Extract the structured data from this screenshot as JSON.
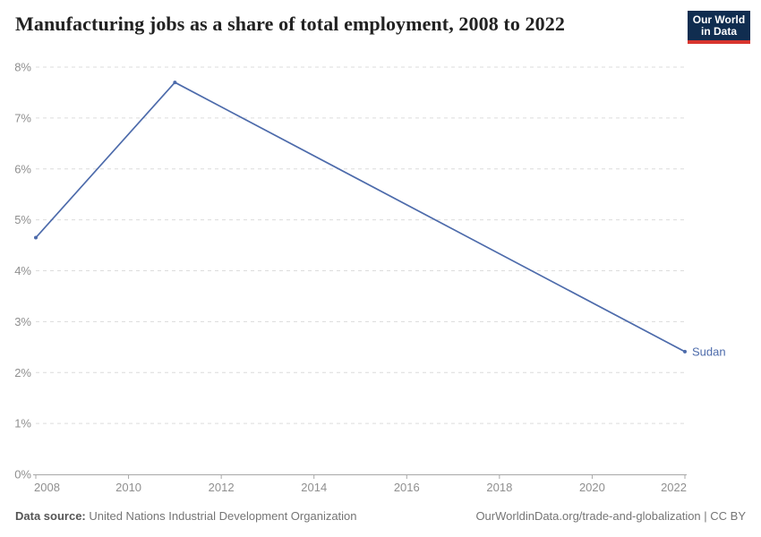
{
  "header": {
    "title": "Manufacturing jobs as a share of total employment, 2008 to 2022"
  },
  "logo": {
    "line1": "Our World",
    "line2": "in Data",
    "bg_color": "#102d50",
    "bar_color": "#d8352e"
  },
  "chart_data": {
    "type": "line",
    "title": "Manufacturing jobs as a share of total employment, 2008 to 2022",
    "xlabel": "",
    "ylabel": "",
    "xlim": [
      2008,
      2022
    ],
    "ylim": [
      0,
      8
    ],
    "grid": "horizontal-dashed",
    "legend_position": "end-of-line-label",
    "xticks": [
      2008,
      2010,
      2012,
      2014,
      2016,
      2018,
      2020,
      2022
    ],
    "yticks": [
      {
        "v": 0,
        "label": "0%"
      },
      {
        "v": 1,
        "label": "1%"
      },
      {
        "v": 2,
        "label": "2%"
      },
      {
        "v": 3,
        "label": "3%"
      },
      {
        "v": 4,
        "label": "4%"
      },
      {
        "v": 5,
        "label": "5%"
      },
      {
        "v": 6,
        "label": "6%"
      },
      {
        "v": 7,
        "label": "7%"
      },
      {
        "v": 8,
        "label": "8%"
      }
    ],
    "series": [
      {
        "name": "Sudan",
        "color": "#4d6bab",
        "points": [
          {
            "x": 2008,
            "y": 4.65
          },
          {
            "x": 2011,
            "y": 7.7
          },
          {
            "x": 2022,
            "y": 2.41
          }
        ]
      }
    ],
    "colors": {
      "gridline": "#dcdcdc",
      "axis": "#a8a8a8",
      "tick_label": "#8f8f8f"
    }
  },
  "footer": {
    "source_label": "Data source:",
    "source_value": " United Nations Industrial Development Organization",
    "citation": "OurWorldinData.org/trade-and-globalization | CC BY"
  }
}
